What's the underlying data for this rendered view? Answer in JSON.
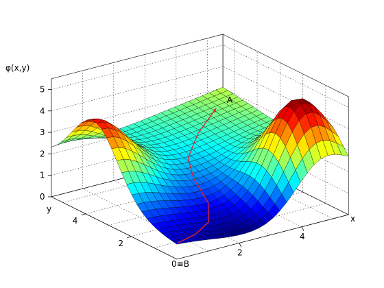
{
  "chart_data": {
    "type": "surface",
    "zlabel": "φ(x,y)",
    "xlabel": "x",
    "ylabel": "y",
    "xlim": [
      0,
      5.5
    ],
    "ylim": [
      0,
      5.5
    ],
    "zlim": [
      0,
      5.5
    ],
    "x_ticks": [
      "2",
      "4"
    ],
    "y_ticks": [
      "2",
      "4"
    ],
    "z_ticks": [
      "0",
      "1",
      "2",
      "3",
      "4",
      "5"
    ],
    "origin_label": "0≡B",
    "point_A_label": "A",
    "grid": true,
    "colormap": "jet",
    "surface": {
      "grid_points_x": 26,
      "grid_points_y": 26,
      "bumps": [
        {
          "x": 0.0,
          "y": 3.6,
          "height": 3.0,
          "width": 1.0
        },
        {
          "x": 4.6,
          "y": 1.0,
          "height": 3.5,
          "width": 0.8
        }
      ],
      "plane": {
        "base": 1.0,
        "x_slope": 0.22,
        "y_slope": 0.15
      },
      "well": {
        "x": 2.8,
        "y": 0.0,
        "depth": 1.2,
        "width": 1.7
      }
    },
    "path": {
      "from": "B",
      "to": "A",
      "color": "#d9233a",
      "points": [
        [
          0.0,
          0.0
        ],
        [
          0.8,
          0.3
        ],
        [
          1.6,
          0.8
        ],
        [
          2.1,
          1.5
        ],
        [
          2.3,
          2.4
        ],
        [
          2.7,
          3.2
        ],
        [
          3.6,
          4.0
        ],
        [
          4.7,
          4.7
        ]
      ]
    }
  }
}
